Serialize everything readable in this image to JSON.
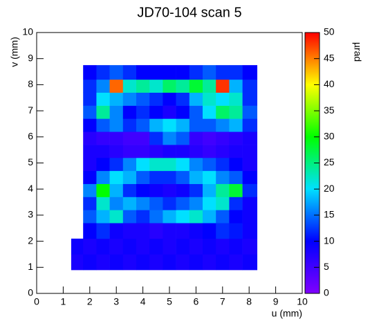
{
  "chart_data": {
    "type": "heatmap",
    "title": "JD70-104 scan 5",
    "x_label": "u (mm)",
    "y_label": "v (mm)",
    "z_label": "µrad",
    "xlim": [
      0,
      10
    ],
    "ylim": [
      0,
      10
    ],
    "zlim": [
      0,
      50
    ],
    "xticks": [
      0,
      1,
      2,
      3,
      4,
      5,
      6,
      7,
      8,
      9,
      10
    ],
    "yticks": [
      0,
      1,
      2,
      3,
      4,
      5,
      6,
      7,
      8,
      9,
      10
    ],
    "zticks": [
      0,
      5,
      10,
      15,
      20,
      25,
      30,
      35,
      40,
      45,
      50
    ],
    "colorscale": [
      "#7f00ff",
      "#0000ff",
      "#00e0ff",
      "#00ff00",
      "#ffff00",
      "#ff0000"
    ],
    "x_edges": [
      1.3,
      1.75,
      2.25,
      2.75,
      3.25,
      3.75,
      4.25,
      4.75,
      5.25,
      5.75,
      6.25,
      6.75,
      7.25,
      7.75,
      8.3
    ],
    "y_edges": [
      0.9,
      1.5,
      2.1,
      2.7,
      3.2,
      3.7,
      4.2,
      4.7,
      5.2,
      5.7,
      6.2,
      6.7,
      7.2,
      7.7,
      8.2,
      8.75
    ],
    "z": [
      [
        8,
        9,
        8,
        9,
        8,
        9,
        8,
        9,
        8,
        9,
        8,
        9,
        8,
        9
      ],
      [
        9,
        8,
        9,
        8,
        9,
        8,
        9,
        8,
        9,
        8,
        9,
        8,
        9,
        8
      ],
      [
        null,
        10,
        12,
        9,
        8,
        8,
        7,
        8,
        8,
        9,
        10,
        12,
        11,
        9
      ],
      [
        null,
        14,
        18,
        22,
        14,
        12,
        15,
        18,
        20,
        22,
        18,
        14,
        10,
        9
      ],
      [
        null,
        12,
        22,
        16,
        18,
        16,
        14,
        12,
        14,
        16,
        20,
        22,
        12,
        9
      ],
      [
        null,
        16,
        30,
        18,
        12,
        10,
        9,
        8,
        9,
        12,
        18,
        24,
        28,
        12
      ],
      [
        null,
        10,
        16,
        20,
        18,
        14,
        12,
        12,
        14,
        18,
        20,
        16,
        14,
        10
      ],
      [
        null,
        8,
        10,
        12,
        16,
        20,
        22,
        22,
        20,
        16,
        14,
        12,
        10,
        8
      ],
      [
        null,
        8,
        8,
        7,
        6,
        6,
        7,
        8,
        8,
        7,
        6,
        7,
        8,
        8
      ],
      [
        null,
        7,
        6,
        6,
        5,
        5,
        12,
        16,
        14,
        6,
        5,
        6,
        7,
        8
      ],
      [
        null,
        10,
        14,
        16,
        12,
        14,
        18,
        20,
        18,
        14,
        14,
        16,
        18,
        12
      ],
      [
        null,
        14,
        24,
        16,
        10,
        12,
        10,
        8,
        10,
        14,
        20,
        26,
        24,
        14
      ],
      [
        null,
        12,
        20,
        18,
        16,
        14,
        12,
        10,
        12,
        18,
        22,
        20,
        22,
        12
      ],
      [
        null,
        12,
        16,
        46,
        22,
        24,
        22,
        26,
        24,
        28,
        24,
        48,
        18,
        12
      ],
      [
        null,
        10,
        12,
        14,
        12,
        10,
        10,
        10,
        10,
        12,
        14,
        12,
        12,
        10
      ]
    ]
  }
}
